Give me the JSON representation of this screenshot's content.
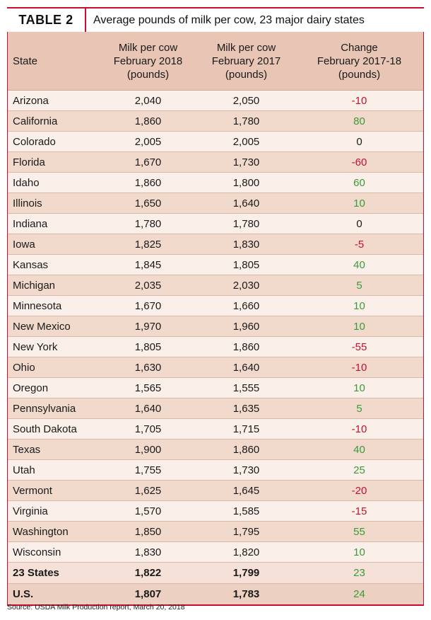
{
  "title": {
    "tag": "TABLE 2",
    "text": "Average pounds of milk per cow, 23 major dairy states"
  },
  "headers": {
    "state": "State",
    "col_a": [
      "Milk per cow",
      "February 2018",
      "(pounds)"
    ],
    "col_b": [
      "Milk per cow",
      "February 2017",
      "(pounds)"
    ],
    "col_c": [
      "Change",
      "February 2017-18",
      "(pounds)"
    ]
  },
  "rows": [
    {
      "state": "Arizona",
      "feb2018": "2,040",
      "feb2017": "2,050",
      "change": "-10",
      "sign": "neg"
    },
    {
      "state": "California",
      "feb2018": "1,860",
      "feb2017": "1,780",
      "change": "80",
      "sign": "pos"
    },
    {
      "state": "Colorado",
      "feb2018": "2,005",
      "feb2017": "2,005",
      "change": "0",
      "sign": "zero"
    },
    {
      "state": "Florida",
      "feb2018": "1,670",
      "feb2017": "1,730",
      "change": "-60",
      "sign": "neg"
    },
    {
      "state": "Idaho",
      "feb2018": "1,860",
      "feb2017": "1,800",
      "change": "60",
      "sign": "pos"
    },
    {
      "state": "Illinois",
      "feb2018": "1,650",
      "feb2017": "1,640",
      "change": "10",
      "sign": "pos"
    },
    {
      "state": "Indiana",
      "feb2018": "1,780",
      "feb2017": "1,780",
      "change": "0",
      "sign": "zero"
    },
    {
      "state": "Iowa",
      "feb2018": "1,825",
      "feb2017": "1,830",
      "change": "-5",
      "sign": "neg"
    },
    {
      "state": "Kansas",
      "feb2018": "1,845",
      "feb2017": "1,805",
      "change": "40",
      "sign": "pos"
    },
    {
      "state": "Michigan",
      "feb2018": "2,035",
      "feb2017": "2,030",
      "change": "5",
      "sign": "pos"
    },
    {
      "state": "Minnesota",
      "feb2018": "1,670",
      "feb2017": "1,660",
      "change": "10",
      "sign": "pos"
    },
    {
      "state": "New Mexico",
      "feb2018": "1,970",
      "feb2017": "1,960",
      "change": "10",
      "sign": "pos"
    },
    {
      "state": "New York",
      "feb2018": "1,805",
      "feb2017": "1,860",
      "change": "-55",
      "sign": "neg"
    },
    {
      "state": "Ohio",
      "feb2018": "1,630",
      "feb2017": "1,640",
      "change": "-10",
      "sign": "neg"
    },
    {
      "state": "Oregon",
      "feb2018": "1,565",
      "feb2017": "1,555",
      "change": "10",
      "sign": "pos"
    },
    {
      "state": "Pennsylvania",
      "feb2018": "1,640",
      "feb2017": "1,635",
      "change": "5",
      "sign": "pos"
    },
    {
      "state": "South Dakota",
      "feb2018": "1,705",
      "feb2017": "1,715",
      "change": "-10",
      "sign": "neg"
    },
    {
      "state": "Texas",
      "feb2018": "1,900",
      "feb2017": "1,860",
      "change": "40",
      "sign": "pos"
    },
    {
      "state": "Utah",
      "feb2018": "1,755",
      "feb2017": "1,730",
      "change": "25",
      "sign": "pos"
    },
    {
      "state": "Vermont",
      "feb2018": "1,625",
      "feb2017": "1,645",
      "change": "-20",
      "sign": "neg"
    },
    {
      "state": "Virginia",
      "feb2018": "1,570",
      "feb2017": "1,585",
      "change": "-15",
      "sign": "neg"
    },
    {
      "state": "Washington",
      "feb2018": "1,850",
      "feb2017": "1,795",
      "change": "55",
      "sign": "pos"
    },
    {
      "state": "Wisconsin",
      "feb2018": "1,830",
      "feb2017": "1,820",
      "change": "10",
      "sign": "pos"
    }
  ],
  "totals": [
    {
      "state": "23 States",
      "feb2018": "1,822",
      "feb2017": "1,799",
      "change": "23",
      "sign": "pos"
    },
    {
      "state": "U.S.",
      "feb2018": "1,807",
      "feb2017": "1,783",
      "change": "24",
      "sign": "pos"
    }
  ],
  "source": "Source: USDA Milk Production report, March 20, 2018",
  "colors": {
    "accent": "#c8102e",
    "header_bg": "#e8c5b4",
    "row_light": "#fbefe9",
    "row_dark": "#f1d9cc",
    "positive": "#3a9b3a",
    "negative": "#c8102e"
  }
}
